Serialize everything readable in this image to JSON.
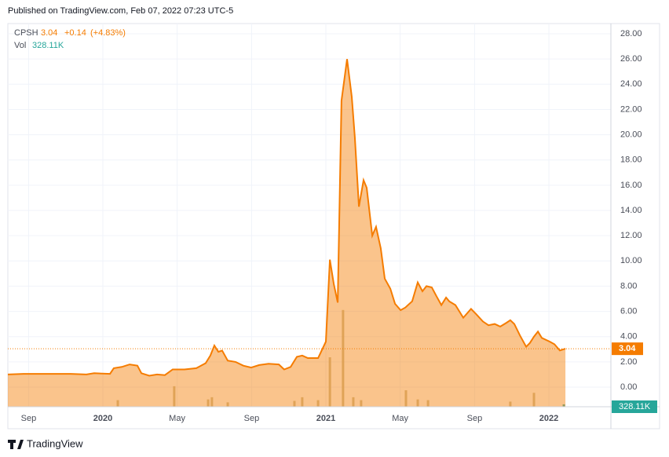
{
  "header": "Published on TradingView.com, Feb 07, 2022 07:23 UTC-5",
  "footer": "TradingView",
  "chart_data": {
    "type": "area",
    "symbol": "CPSH",
    "last": 3.04,
    "change": "+0.14",
    "change_pct": "(+4.83%)",
    "volume_name": "Vol",
    "volume_label": "328.11K",
    "grid": true,
    "xlim": [
      2019.574,
      2022.278
    ],
    "xticks": [
      {
        "value": 2019.667,
        "label": "Sep"
      },
      {
        "value": 2020,
        "label": "2020"
      },
      {
        "value": 2020.333,
        "label": "May"
      },
      {
        "value": 2020.667,
        "label": "Sep"
      },
      {
        "value": 2021,
        "label": "2021"
      },
      {
        "value": 2021.333,
        "label": "May"
      },
      {
        "value": 2021.667,
        "label": "Sep"
      },
      {
        "value": 2022,
        "label": "2022"
      }
    ],
    "ylim": [
      -1.556,
      28.81
    ],
    "yticks": [
      {
        "value": 0,
        "label": "0.00"
      },
      {
        "value": 2,
        "label": "2.00"
      },
      {
        "value": 4,
        "label": "4.00"
      },
      {
        "value": 6,
        "label": "6.00"
      },
      {
        "value": 8,
        "label": "8.00"
      },
      {
        "value": 10,
        "label": "10.00"
      },
      {
        "value": 12,
        "label": "12.00"
      },
      {
        "value": 14,
        "label": "14.00"
      },
      {
        "value": 16,
        "label": "16.00"
      },
      {
        "value": 18,
        "label": "18.00"
      },
      {
        "value": 20,
        "label": "20.00"
      },
      {
        "value": 22,
        "label": "22.00"
      },
      {
        "value": 24,
        "label": "24.00"
      },
      {
        "value": 26,
        "label": "26.00"
      },
      {
        "value": 28,
        "label": "28.00"
      }
    ],
    "series": [
      {
        "name": "CPSH",
        "color": "#f57c00",
        "x": [
          2019.574,
          2019.644,
          2019.75,
          2019.856,
          2019.926,
          2019.961,
          2020.032,
          2020.049,
          2020.085,
          2020.12,
          2020.155,
          2020.173,
          2020.208,
          2020.243,
          2020.278,
          2020.313,
          2020.366,
          2020.419,
          2020.461,
          2020.482,
          2020.5,
          2020.518,
          2020.535,
          2020.56,
          2020.595,
          2020.63,
          2020.665,
          2020.701,
          2020.743,
          2020.789,
          2020.813,
          2020.842,
          2020.87,
          2020.894,
          2020.919,
          2020.965,
          2021.0,
          2021.018,
          2021.035,
          2021.053,
          2021.07,
          2021.095,
          2021.116,
          2021.13,
          2021.148,
          2021.169,
          2021.183,
          2021.208,
          2021.225,
          2021.246,
          2021.264,
          2021.289,
          2021.31,
          2021.335,
          2021.356,
          2021.387,
          2021.412,
          2021.433,
          2021.451,
          2021.475,
          2021.496,
          2021.518,
          2021.539,
          2021.553,
          2021.581,
          2021.616,
          2021.651,
          2021.673,
          2021.704,
          2021.729,
          2021.757,
          2021.782,
          2021.81,
          2021.827,
          2021.845,
          2021.87,
          2021.898,
          2021.915,
          2021.933,
          2021.951,
          2021.968,
          2022.004,
          2022.025,
          2022.049,
          2022.074
        ],
        "values": [
          1.0,
          1.05,
          1.05,
          1.05,
          1.0,
          1.1,
          1.05,
          1.5,
          1.6,
          1.8,
          1.7,
          1.1,
          0.9,
          1.0,
          0.95,
          1.4,
          1.4,
          1.5,
          1.9,
          2.5,
          3.3,
          2.8,
          2.9,
          2.1,
          2.0,
          1.7,
          1.55,
          1.75,
          1.85,
          1.8,
          1.4,
          1.6,
          2.4,
          2.5,
          2.3,
          2.3,
          3.6,
          10.1,
          8.2,
          6.7,
          22.7,
          26.0,
          23.0,
          19.8,
          14.3,
          16.4,
          15.8,
          12.0,
          12.7,
          11.0,
          8.6,
          7.8,
          6.6,
          6.1,
          6.3,
          6.8,
          8.3,
          7.6,
          8.0,
          7.9,
          7.2,
          6.5,
          7.1,
          6.8,
          6.5,
          5.5,
          6.2,
          5.8,
          5.2,
          4.9,
          5.0,
          4.8,
          5.1,
          5.3,
          5.0,
          4.1,
          3.2,
          3.5,
          4.0,
          4.4,
          3.9,
          3.6,
          3.4,
          2.9,
          3.04
        ]
      }
    ],
    "volume": {
      "color": "#c8b88e",
      "last_color": "#26a69a",
      "lim": [
        0,
        15000000
      ],
      "x": [
        2020.067,
        2020.32,
        2020.472,
        2020.489,
        2020.56,
        2020.859,
        2020.894,
        2020.965,
        2021.018,
        2021.077,
        2021.123,
        2021.158,
        2021.359,
        2021.412,
        2021.458,
        2021.827,
        2021.933,
        2022.067
      ],
      "values": [
        900000,
        2800000,
        1000000,
        1300000,
        600000,
        800000,
        1300000,
        900000,
        6750000,
        13200000,
        1300000,
        900000,
        2250000,
        1000000,
        900000,
        700000,
        1900000,
        328110
      ]
    }
  }
}
